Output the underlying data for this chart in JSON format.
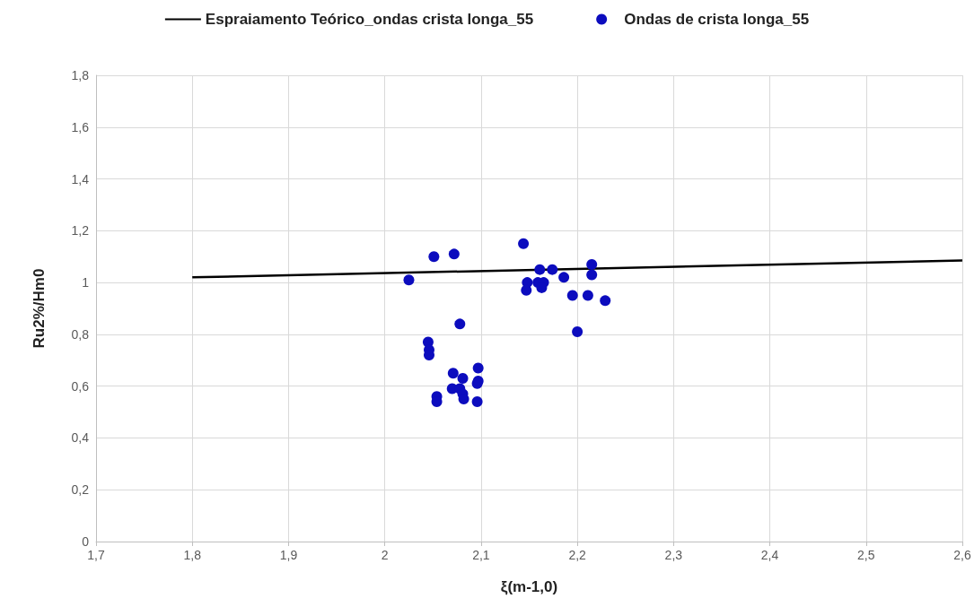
{
  "chart_data": {
    "type": "scatter",
    "xlabel": "ξ(m-1,0)",
    "ylabel": "Ru2%/Hm0",
    "xlim": [
      1.7,
      2.6
    ],
    "xticks": [
      {
        "value": 1.7,
        "label": "1,7"
      },
      {
        "value": 1.8,
        "label": "1,8"
      },
      {
        "value": 1.9,
        "label": "1,9"
      },
      {
        "value": 2,
        "label": "2"
      },
      {
        "value": 2.1,
        "label": "2,1"
      },
      {
        "value": 2.2,
        "label": "2,2"
      },
      {
        "value": 2.3,
        "label": "2,3"
      },
      {
        "value": 2.4,
        "label": "2,4"
      },
      {
        "value": 2.5,
        "label": "2,5"
      },
      {
        "value": 2.6,
        "label": "2,6"
      }
    ],
    "ylim": [
      0,
      1.8
    ],
    "yticks": [
      0,
      {
        "value": 0.2,
        "label": "0,2"
      },
      {
        "value": 0.4,
        "label": "0,4"
      },
      {
        "value": 0.6,
        "label": "0,6"
      },
      {
        "value": 0.8,
        "label": "0,8"
      },
      1,
      {
        "value": 1.2,
        "label": "1,2"
      },
      {
        "value": 1.4,
        "label": "1,4"
      },
      {
        "value": 1.6,
        "label": "1,6"
      },
      {
        "value": 1.8,
        "label": "1,8"
      }
    ],
    "grid": true,
    "legend": "top",
    "series": [
      {
        "name": "Espraiamento Teórico_ondas crista longa_55",
        "type": "line",
        "marker": "none",
        "color": "#000000",
        "line_style": "solid",
        "x": [
          1.8,
          2.6
        ],
        "values": [
          1.02,
          1.085
        ]
      },
      {
        "name": "Ondas de crista longa_55",
        "marker": "circle",
        "color": "#0c0cbe",
        "x": [
          2.025,
          2.051,
          2.072,
          2.078,
          2.045,
          2.046,
          2.046,
          2.071,
          2.081,
          2.097,
          2.097,
          2.096,
          2.07,
          2.078,
          2.081,
          2.082,
          2.054,
          2.054,
          2.096,
          2.144,
          2.161,
          2.174,
          2.148,
          2.159,
          2.165,
          2.147,
          2.163,
          2.186,
          2.215,
          2.215,
          2.195,
          2.211,
          2.229,
          2.2
        ],
        "values": [
          1.01,
          1.1,
          1.11,
          0.84,
          0.77,
          0.74,
          0.72,
          0.65,
          0.63,
          0.67,
          0.62,
          0.61,
          0.59,
          0.59,
          0.57,
          0.55,
          0.56,
          0.54,
          0.54,
          1.15,
          1.05,
          1.05,
          1.0,
          1.0,
          1.0,
          0.97,
          0.98,
          1.02,
          1.07,
          1.03,
          0.95,
          0.95,
          0.93,
          0.81
        ]
      }
    ]
  }
}
